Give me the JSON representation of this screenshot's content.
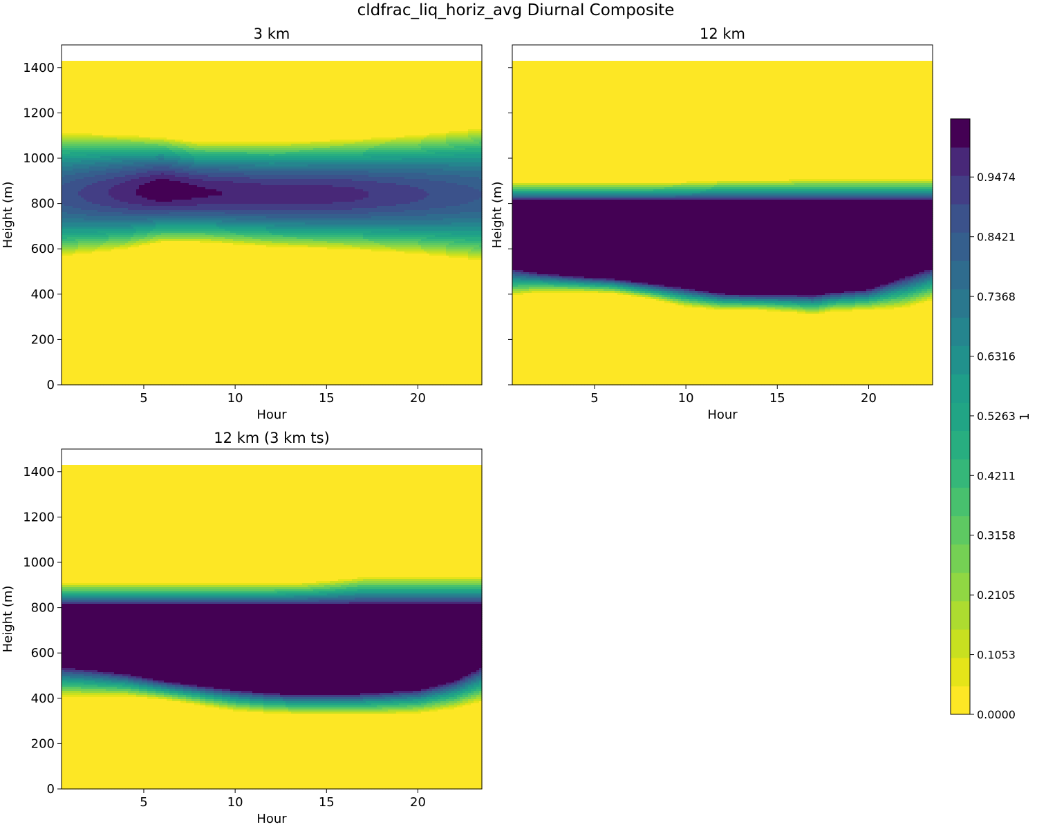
{
  "figure": {
    "title": "cldfrac_liq_horiz_avg Diurnal Composite"
  },
  "chart_data": [
    {
      "type": "heatmap",
      "title": "3 km",
      "xlabel": "Hour",
      "ylabel": "Height (m)",
      "xlim": [
        0.5,
        23.5
      ],
      "ylim": [
        0,
        1500
      ],
      "xticks": [
        5,
        10,
        15,
        20
      ],
      "yticks": [
        0,
        200,
        400,
        600,
        800,
        1000,
        1200,
        1400
      ],
      "data_top": 1430,
      "pattern": "ellipse",
      "field": {
        "center_height": [
          840,
          850,
          860,
          850,
          840,
          840,
          840,
          840
        ],
        "center_hours": [
          0.5,
          4,
          6,
          8,
          12,
          16,
          20,
          23.5
        ],
        "half_width": [
          270,
          250,
          230,
          220,
          230,
          240,
          260,
          290
        ],
        "peak_value": [
          0.82,
          0.93,
          1.0,
          0.96,
          0.93,
          0.92,
          0.86,
          0.8
        ],
        "cloud_bottom": 505
      }
    },
    {
      "type": "heatmap",
      "title": "12 km",
      "xlabel": "Hour",
      "ylabel": "Height (m)",
      "xlim": [
        0.5,
        23.5
      ],
      "ylim": [
        0,
        1500
      ],
      "xticks": [
        5,
        10,
        15,
        20
      ],
      "yticks": [
        0,
        200,
        400,
        600,
        800,
        1000,
        1200,
        1400
      ],
      "data_top": 1430,
      "pattern": "slab",
      "field": {
        "hours": [
          0.5,
          2,
          4,
          6,
          8,
          10,
          12,
          14,
          16,
          17,
          18,
          20,
          22,
          23.5
        ],
        "top_solid": [
          810,
          810,
          810,
          810,
          810,
          810,
          810,
          810,
          810,
          810,
          810,
          810,
          810,
          810
        ],
        "top_zero": [
          890,
          890,
          890,
          890,
          890,
          895,
          900,
          900,
          905,
          905,
          905,
          905,
          905,
          905
        ],
        "bottom_solid": [
          515,
          495,
          480,
          470,
          450,
          430,
          405,
          400,
          400,
          400,
          410,
          425,
          480,
          520
        ],
        "bottom_zero": [
          395,
          410,
          410,
          405,
          380,
          345,
          330,
          330,
          320,
          310,
          325,
          330,
          340,
          375
        ]
      }
    },
    {
      "type": "heatmap",
      "title": "12 km (3 km ts)",
      "xlabel": "Hour",
      "ylabel": "Height (m)",
      "xlim": [
        0.5,
        23.5
      ],
      "ylim": [
        0,
        1500
      ],
      "xticks": [
        5,
        10,
        15,
        20
      ],
      "yticks": [
        0,
        200,
        400,
        600,
        800,
        1000,
        1200,
        1400
      ],
      "data_top": 1430,
      "pattern": "slab",
      "field": {
        "hours": [
          0.5,
          2,
          4,
          6,
          8,
          10,
          12,
          14,
          16,
          17,
          18,
          20,
          22,
          23.5
        ],
        "top_solid": [
          810,
          810,
          810,
          810,
          810,
          810,
          810,
          810,
          810,
          810,
          810,
          810,
          810,
          810
        ],
        "top_zero": [
          905,
          905,
          905,
          905,
          905,
          905,
          905,
          910,
          925,
          935,
          935,
          935,
          935,
          935
        ],
        "bottom_solid": [
          540,
          530,
          510,
          480,
          460,
          440,
          425,
          420,
          420,
          425,
          430,
          440,
          480,
          540
        ],
        "bottom_zero": [
          410,
          410,
          410,
          395,
          370,
          345,
          335,
          330,
          330,
          330,
          330,
          335,
          355,
          385
        ]
      }
    }
  ],
  "colorbar": {
    "label": "1",
    "range": [
      0,
      1
    ],
    "levels": 20,
    "tick_values": [
      0.0,
      0.1053,
      0.2105,
      0.3158,
      0.4211,
      0.5263,
      0.6316,
      0.7368,
      0.8421,
      0.9474
    ],
    "tick_labels": [
      "0.0000",
      "0.1053",
      "0.2105",
      "0.3158",
      "0.4211",
      "0.5263",
      "0.6316",
      "0.7368",
      "0.8421",
      "0.9474"
    ],
    "colormap": "viridis",
    "colors": [
      "#fde725",
      "#e5e419",
      "#c8e020",
      "#addc30",
      "#90d743",
      "#75d054",
      "#5ec962",
      "#48c16e",
      "#35b779",
      "#28ae80",
      "#21a585",
      "#1f9e89",
      "#21918c",
      "#25858e",
      "#2a788e",
      "#2f6c8e",
      "#355f8d",
      "#3b528b",
      "#433e85",
      "#482878",
      "#440154"
    ]
  }
}
